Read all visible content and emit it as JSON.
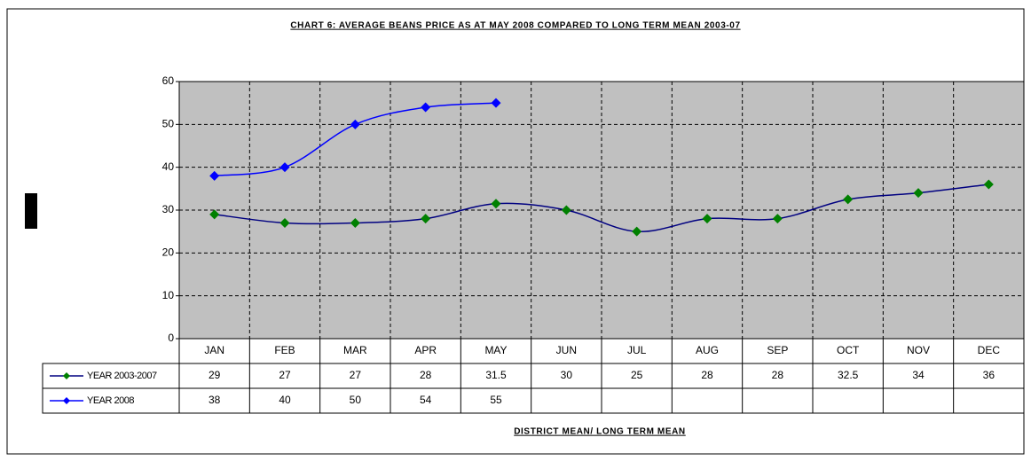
{
  "chart_data": {
    "type": "line",
    "title": "CHART 6: AVERAGE BEANS PRICE AS AT MAY 2008 COMPARED TO LONG TERM MEAN 2003-07",
    "x_label": "DISTRICT MEAN/ LONG TERM MEAN",
    "categories": [
      "JAN",
      "FEB",
      "MAR",
      "APR",
      "MAY",
      "JUN",
      "JUL",
      "AUG",
      "SEP",
      "OCT",
      "NOV",
      "DEC"
    ],
    "series": [
      {
        "name": "YEAR 2003-2007",
        "color": "#000080",
        "marker_color": "#008000",
        "values": [
          29,
          27,
          27,
          28,
          31.5,
          30,
          25,
          28,
          28,
          32.5,
          34,
          36
        ]
      },
      {
        "name": "YEAR 2008",
        "color": "#0000ff",
        "marker_color": "#0000ff",
        "values": [
          38,
          40,
          50,
          54,
          55,
          null,
          null,
          null,
          null,
          null,
          null,
          null
        ]
      }
    ],
    "ylim": [
      0,
      60
    ],
    "yticks": [
      0,
      10,
      20,
      30,
      40,
      50,
      60
    ],
    "grid": true,
    "smooth": true,
    "data_table": true
  }
}
